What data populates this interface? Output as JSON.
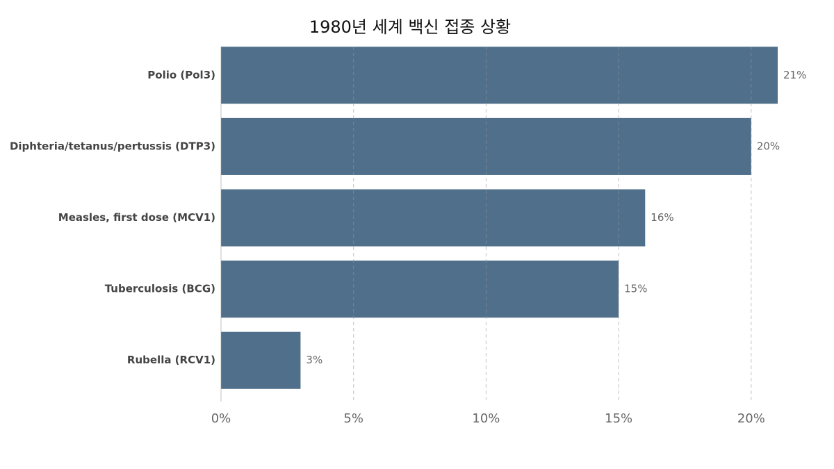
{
  "chart_data": {
    "type": "bar",
    "orientation": "horizontal",
    "title": "1980년 세계 백신 접종 상황",
    "categories": [
      "Polio (Pol3)",
      "Diphteria/tetanus/pertussis (DTP3)",
      "Measles, first dose (MCV1)",
      "Tuberculosis (BCG)",
      "Rubella (RCV1)"
    ],
    "values": [
      21,
      20,
      16,
      15,
      3
    ],
    "value_labels": [
      "21%",
      "20%",
      "16%",
      "15%",
      "3%"
    ],
    "color": "#4f6f8a",
    "xlim": [
      0,
      21
    ],
    "xticks": [
      {
        "value": 0,
        "label": "0%"
      },
      {
        "value": 5,
        "label": "5%"
      },
      {
        "value": 10,
        "label": "10%"
      },
      {
        "value": 15,
        "label": "15%"
      },
      {
        "value": 20,
        "label": "20%"
      }
    ],
    "grid": true
  }
}
